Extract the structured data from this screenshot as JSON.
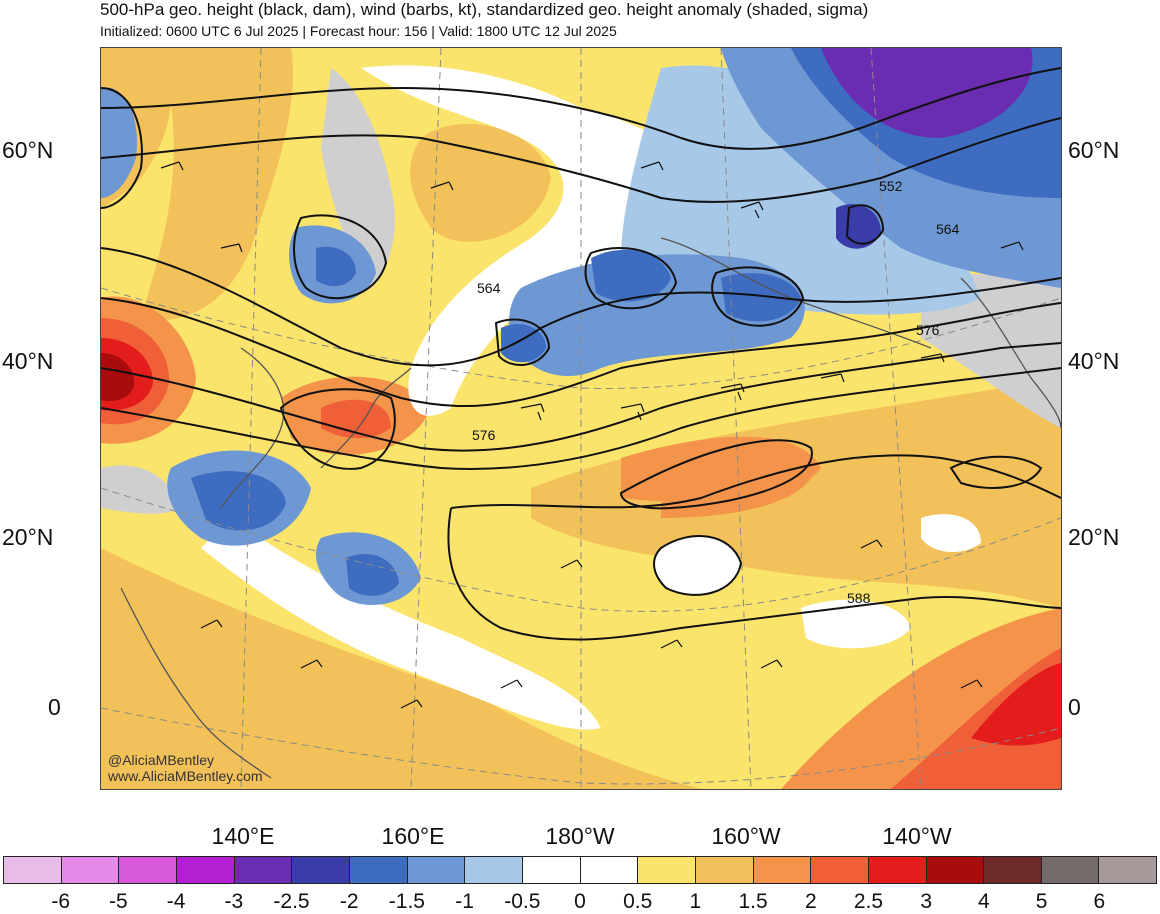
{
  "header": {
    "title": "500-hPa geo. height (black, dam), wind (barbs, kt), standardized geo. height anomaly (shaded, sigma)",
    "subtitle": "Initialized: 0600 UTC 6 Jul 2025 | Forecast hour: 156 | Valid: 1800 UTC 12 Jul 2025"
  },
  "map": {
    "lat_labels": [
      "60°N",
      "40°N",
      "20°N",
      "0"
    ],
    "lon_labels": [
      "140°E",
      "160°E",
      "180°W",
      "160°W",
      "140°W"
    ],
    "contour_labels": [
      "552",
      "564",
      "564",
      "576",
      "576",
      "588"
    ],
    "watermark": {
      "handle": "@AliciaMBentley",
      "site": "www.AliciaMBentley.com"
    }
  },
  "colorbar": {
    "labels": [
      "-6",
      "-5",
      "-4",
      "-3",
      "-2.5",
      "-2",
      "-1.5",
      "-1",
      "-0.5",
      "0",
      "0.5",
      "1",
      "1.5",
      "2",
      "2.5",
      "3",
      "4",
      "5",
      "6"
    ],
    "colors": [
      "#e8bce8",
      "#e48ae8",
      "#d85ad8",
      "#b31fd2",
      "#6a2cb0",
      "#3a3ca8",
      "#3d6cc0",
      "#6e98d4",
      "#a8c8e8",
      "#ffffff",
      "#ffffff",
      "#fbe46c",
      "#f3c15a",
      "#f3944a",
      "#ef5f38",
      "#e31c1c",
      "#a80c0c",
      "#6e2a2a",
      "#756b6b",
      "#a89a9a"
    ]
  }
}
